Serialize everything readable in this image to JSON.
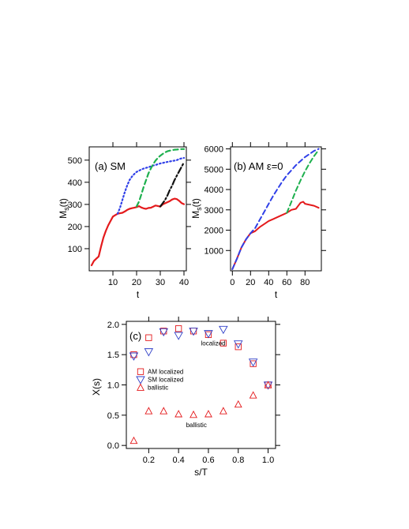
{
  "chart_data": [
    {
      "type": "line",
      "title": "(a) SM",
      "xlabel": "t",
      "ylabel": "M",
      "ylabel_sub": "s",
      "ylabel_suffix": "(t)",
      "xlim": [
        0,
        41
      ],
      "ylim": [
        0,
        560
      ],
      "xticks": [
        10,
        20,
        30,
        40
      ],
      "yticks": [
        100,
        200,
        300,
        400,
        500
      ],
      "series": [
        {
          "color": "#e41a1c",
          "dash": "solid",
          "width": 2.2,
          "x": [
            1,
            2,
            3,
            4,
            5,
            6,
            7,
            8,
            9,
            10,
            11,
            12,
            13,
            14,
            15,
            16,
            17,
            18,
            19,
            20,
            21,
            22,
            23,
            24,
            25,
            26,
            27,
            28,
            29,
            30,
            31,
            32,
            33,
            34,
            35,
            36,
            37,
            38,
            39,
            40
          ],
          "y": [
            25,
            45,
            55,
            65,
            110,
            150,
            180,
            205,
            225,
            245,
            252,
            258,
            260,
            262,
            268,
            275,
            280,
            283,
            285,
            288,
            292,
            286,
            282,
            280,
            284,
            285,
            290,
            295,
            293,
            290,
            300,
            305,
            310,
            315,
            322,
            326,
            324,
            316,
            306,
            301
          ]
        },
        {
          "color": "#3040e8",
          "dash": "dotted",
          "width": 2.2,
          "x": [
            12,
            13,
            14,
            15,
            16,
            17,
            18,
            19,
            20,
            21,
            22,
            23,
            24,
            25,
            26,
            27,
            28,
            29,
            30,
            31,
            32,
            33,
            34,
            35,
            36,
            37,
            38,
            39,
            40
          ],
          "y": [
            258,
            285,
            320,
            355,
            385,
            410,
            425,
            437,
            447,
            452,
            458,
            462,
            465,
            468,
            472,
            476,
            478,
            482,
            485,
            487,
            490,
            492,
            494,
            496,
            498,
            500,
            505,
            508,
            510
          ]
        },
        {
          "color": "#1eb04e",
          "dash": "dashed",
          "width": 2.2,
          "x": [
            20,
            21,
            22,
            23,
            24,
            25,
            26,
            27,
            28,
            29,
            30,
            31,
            32,
            33,
            34,
            35,
            36,
            37,
            38,
            39,
            40
          ],
          "y": [
            291,
            312,
            345,
            380,
            410,
            440,
            462,
            482,
            498,
            510,
            520,
            528,
            535,
            540,
            543,
            545,
            547,
            548,
            549,
            550,
            550
          ]
        },
        {
          "color": "#111111",
          "dash": "dashdot",
          "width": 2.2,
          "x": [
            30,
            31,
            32,
            33,
            34,
            35,
            36,
            37,
            38,
            39,
            40
          ],
          "y": [
            291,
            305,
            320,
            340,
            365,
            385,
            410,
            430,
            450,
            470,
            490
          ]
        }
      ]
    },
    {
      "type": "line",
      "title": "(b) AM ε=0",
      "xlabel": "t",
      "ylabel": "M",
      "ylabel_sub": "s",
      "ylabel_suffix": "(t)",
      "xlim": [
        -2,
        98
      ],
      "ylim": [
        0,
        6100
      ],
      "xticks": [
        0,
        20,
        40,
        60,
        80
      ],
      "yticks": [
        1000,
        2000,
        3000,
        4000,
        5000,
        6000
      ],
      "series": [
        {
          "color": "#e41a1c",
          "dash": "solid",
          "width": 2.0,
          "x": [
            0,
            5,
            10,
            15,
            20,
            25,
            30,
            35,
            40,
            45,
            50,
            55,
            60,
            65,
            70,
            75,
            78,
            80,
            85,
            90,
            95
          ],
          "y": [
            80,
            600,
            1150,
            1550,
            1850,
            1950,
            2150,
            2300,
            2450,
            2550,
            2650,
            2750,
            2850,
            3000,
            3050,
            3350,
            3400,
            3300,
            3250,
            3200,
            3100
          ]
        },
        {
          "color": "#3040e8",
          "dash": "dashed",
          "width": 2.0,
          "x": [
            0,
            5,
            10,
            15,
            20,
            25,
            30,
            35,
            40,
            45,
            50,
            55,
            60,
            65,
            70,
            75,
            80,
            85,
            90,
            95
          ],
          "y": [
            80,
            600,
            1150,
            1550,
            1850,
            2100,
            2500,
            2900,
            3300,
            3700,
            4050,
            4400,
            4700,
            4950,
            5200,
            5400,
            5600,
            5750,
            5900,
            6000
          ]
        },
        {
          "color": "#1eb04e",
          "dash": "dashed",
          "width": 2.0,
          "x": [
            60,
            65,
            70,
            75,
            80,
            85,
            90,
            95
          ],
          "y": [
            2850,
            3400,
            3950,
            4450,
            4900,
            5300,
            5650,
            5950
          ]
        }
      ]
    },
    {
      "type": "scatter",
      "title": "(c)",
      "xlabel": "s/T",
      "ylabel": "X(s)",
      "xlim": [
        0.05,
        1.05
      ],
      "ylim": [
        -0.05,
        2.05
      ],
      "xticks": [
        0.2,
        0.4,
        0.6,
        0.8,
        1.0
      ],
      "xticklabels": [
        "0.2",
        "0.4",
        "0.6",
        "0.8",
        "1.0"
      ],
      "yticks": [
        0.0,
        0.5,
        1.0,
        1.5,
        2.0
      ],
      "yticklabels": [
        "0.0",
        "0.5",
        "1.0",
        "1.5",
        "2.0"
      ],
      "annotations": [
        {
          "text": "localized",
          "x": 0.55,
          "y": 1.65
        },
        {
          "text": "ballistic",
          "x": 0.45,
          "y": 0.3
        }
      ],
      "legend_position": "center-left",
      "series": [
        {
          "name": "AM localized",
          "marker": "square",
          "color": "#e41a1c",
          "x": [
            0.1,
            0.2,
            0.3,
            0.4,
            0.5,
            0.6,
            0.7,
            0.8,
            0.9,
            1.0
          ],
          "y": [
            1.5,
            1.78,
            1.89,
            1.93,
            1.89,
            1.83,
            1.69,
            1.63,
            1.35,
            1.0
          ]
        },
        {
          "name": "SM localized",
          "marker": "triangle-down",
          "color": "#3040c8",
          "x": [
            0.1,
            0.2,
            0.3,
            0.4,
            0.5,
            0.6,
            0.7,
            0.8,
            0.9,
            1.0
          ],
          "y": [
            1.48,
            1.55,
            1.88,
            1.82,
            1.89,
            1.85,
            1.92,
            1.68,
            1.38,
            1.0
          ]
        },
        {
          "name": "ballistic",
          "marker": "triangle-up",
          "color": "#e41a1c",
          "x": [
            0.1,
            0.2,
            0.3,
            0.4,
            0.5,
            0.6,
            0.7,
            0.8,
            0.9,
            1.0
          ],
          "y": [
            0.08,
            0.57,
            0.57,
            0.52,
            0.51,
            0.52,
            0.57,
            0.68,
            0.83,
            1.0
          ]
        }
      ]
    }
  ]
}
